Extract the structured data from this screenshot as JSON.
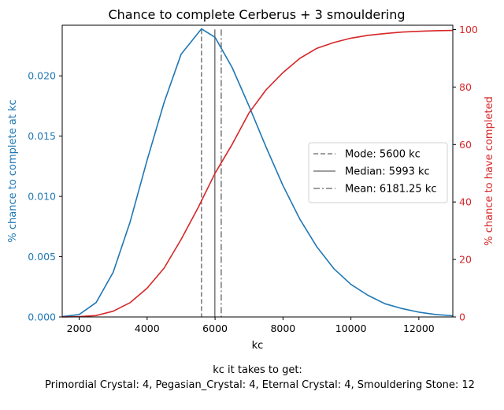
{
  "chart_data": {
    "type": "line",
    "title": "Chance to complete Cerberus + 3 smouldering",
    "xlabel": "kc",
    "xlim": [
      1500,
      13000
    ],
    "x_ticks": [
      2000,
      4000,
      6000,
      8000,
      10000,
      12000
    ],
    "x_tick_labels": [
      "2000",
      "4000",
      "6000",
      "8000",
      "10000",
      "12000"
    ],
    "y_left": {
      "label": "% chance to complete at kc",
      "color": "#1f77b4",
      "lim": [
        0,
        0.0242
      ],
      "ticks": [
        0,
        0.005,
        0.01,
        0.015,
        0.02
      ],
      "tick_labels": [
        "0.000",
        "0.005",
        "0.010",
        "0.015",
        "0.020"
      ]
    },
    "y_right": {
      "label": "% chance to have completed",
      "color": "#d62728",
      "lim": [
        0,
        101.5
      ],
      "ticks": [
        0,
        20,
        40,
        60,
        80,
        100
      ],
      "tick_labels": [
        "0",
        "20",
        "40",
        "60",
        "80",
        "100"
      ]
    },
    "series": [
      {
        "axis": "left",
        "color": "#1f77b4",
        "x": [
          1500,
          2000,
          2500,
          3000,
          3500,
          4000,
          4500,
          5000,
          5600,
          6000,
          6500,
          7000,
          7500,
          8000,
          8500,
          9000,
          9500,
          10000,
          10500,
          11000,
          11500,
          12000,
          12500,
          13000
        ],
        "y": [
          3e-05,
          0.0002,
          0.0012,
          0.0037,
          0.0079,
          0.013,
          0.0178,
          0.0218,
          0.0239,
          0.0232,
          0.0207,
          0.0175,
          0.0141,
          0.0109,
          0.0081,
          0.0058,
          0.004,
          0.0027,
          0.0018,
          0.0011,
          0.0007,
          0.0004,
          0.0002,
          0.0001
        ]
      },
      {
        "axis": "right",
        "color": "#d62728",
        "x": [
          1500,
          2000,
          2500,
          3000,
          3500,
          4000,
          4500,
          5000,
          5500,
          6000,
          6500,
          7000,
          7500,
          8000,
          8500,
          9000,
          9500,
          10000,
          10500,
          11000,
          11500,
          12000,
          12500,
          13000
        ],
        "y": [
          0,
          0.1,
          0.5,
          2,
          5,
          10,
          17,
          27,
          38,
          50,
          60,
          71,
          79,
          85,
          90,
          93.5,
          95.5,
          97,
          98,
          98.6,
          99.1,
          99.4,
          99.6,
          99.7
        ]
      }
    ],
    "vlines": [
      {
        "name": "Mode: 5600 kc",
        "x": 5600,
        "style": "dashed",
        "color": "#7f7f7f"
      },
      {
        "name": "Median: 5993 kc",
        "x": 5993,
        "style": "solid",
        "color": "#7f7f7f"
      },
      {
        "name": "Mean: 6181.25 kc",
        "x": 6181.25,
        "style": "dashdot",
        "color": "#7f7f7f"
      }
    ],
    "legend_position": "center-right",
    "caption_line1": "kc it takes to get:",
    "caption_line2": "Primordial Crystal: 4,  Pegasian_Crystal: 4,  Eternal Crystal: 4,  Smouldering Stone: 12",
    "grid": false
  }
}
